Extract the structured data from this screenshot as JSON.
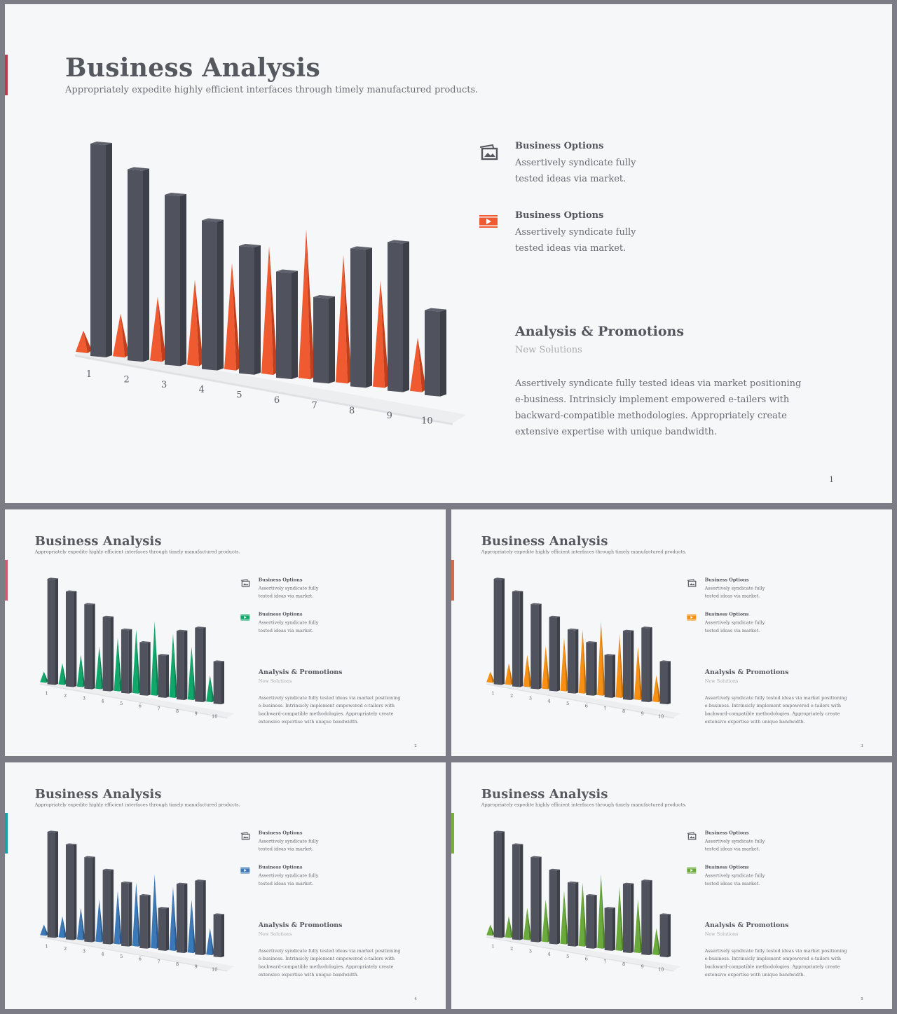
{
  "slides": [
    {
      "page": "1",
      "accent": "#c0394f",
      "color": "#f05a30",
      "shade": "#c23f1d"
    },
    {
      "page": "2",
      "accent": "#d05a6e",
      "color": "#0fa86a",
      "shade": "#0b7f50"
    },
    {
      "page": "3",
      "accent": "#d46a4a",
      "color": "#f78f13",
      "shade": "#c56f08"
    },
    {
      "page": "4",
      "accent": "#18a0a8",
      "color": "#3a78b8",
      "shade": "#2a5a8c"
    },
    {
      "page": "5",
      "accent": "#7ab03a",
      "color": "#6aaa3a",
      "shade": "#4f8528"
    }
  ],
  "content": {
    "title": "Business Analysis",
    "subtitle": "Appropriately expedite highly efficient interfaces through timely manufactured products.",
    "options": [
      {
        "icon": "image-gallery-icon",
        "title": "Business Options",
        "text": "Assertively syndicate fully tested ideas via market."
      },
      {
        "icon": "video-play-icon",
        "title": "Business Options",
        "text": "Assertively syndicate fully tested ideas via market."
      }
    ],
    "section_title": "Analysis & Promotions",
    "section_subtitle": "New Solutions",
    "section_body": "Assertively syndicate fully tested ideas via market positioning e-business. Intrinsicly implement empowered e-tailers with backward-compatible methodologies. Appropriately create extensive expertise with unique bandwidth."
  },
  "chart_data": {
    "type": "bar",
    "categories": [
      "1",
      "2",
      "3",
      "4",
      "5",
      "6",
      "7",
      "8",
      "9",
      "10"
    ],
    "series": [
      {
        "values": [
          10,
          9,
          8,
          7,
          6,
          5,
          4,
          6.5,
          7,
          4
        ]
      },
      {
        "values": [
          1,
          2,
          3,
          4,
          5,
          6,
          7,
          6,
          5,
          2.5
        ]
      }
    ],
    "ylim": [
      0,
      10
    ],
    "bar_color": "#50525e",
    "grid": false
  }
}
